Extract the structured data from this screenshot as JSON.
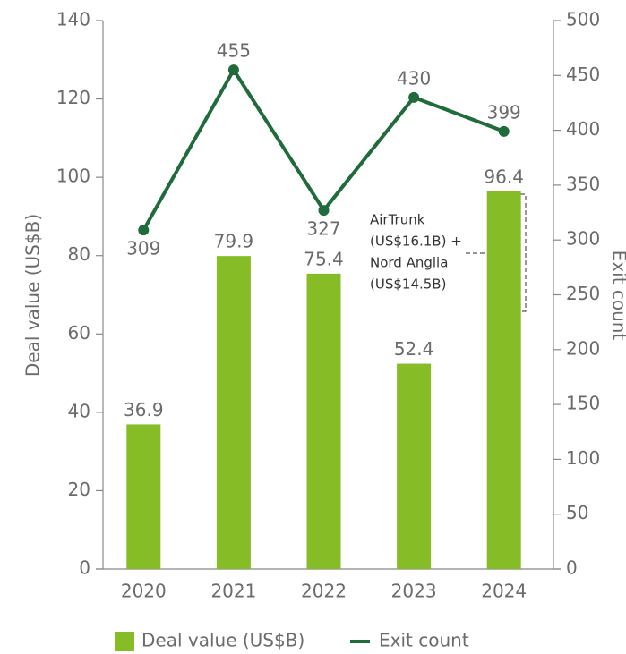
{
  "chart_data": {
    "type": "bar_line",
    "categories": [
      "2020",
      "2021",
      "2022",
      "2023",
      "2024"
    ],
    "ylabel": "Deal value (US$B)",
    "y2label": "Exit count",
    "ylim": [
      0,
      140
    ],
    "yticks": [
      0,
      20,
      40,
      60,
      80,
      100,
      120,
      140
    ],
    "y2lim": [
      0,
      500
    ],
    "y2ticks": [
      0,
      50,
      100,
      150,
      200,
      250,
      300,
      350,
      400,
      450,
      500
    ],
    "series": [
      {
        "name": "Deal value (US$B)",
        "kind": "bar",
        "color": "#86bc25",
        "values": [
          36.9,
          79.9,
          75.4,
          52.4,
          96.4
        ]
      },
      {
        "name": "Exit count",
        "kind": "line",
        "axis": "y2",
        "color": "#1f6b3a",
        "values": [
          309,
          455,
          327,
          430,
          399
        ]
      }
    ],
    "annotation": [
      "AirTrunk",
      "(US$16.1B) +",
      "Nord Anglia",
      "(US$14.5B)"
    ]
  }
}
